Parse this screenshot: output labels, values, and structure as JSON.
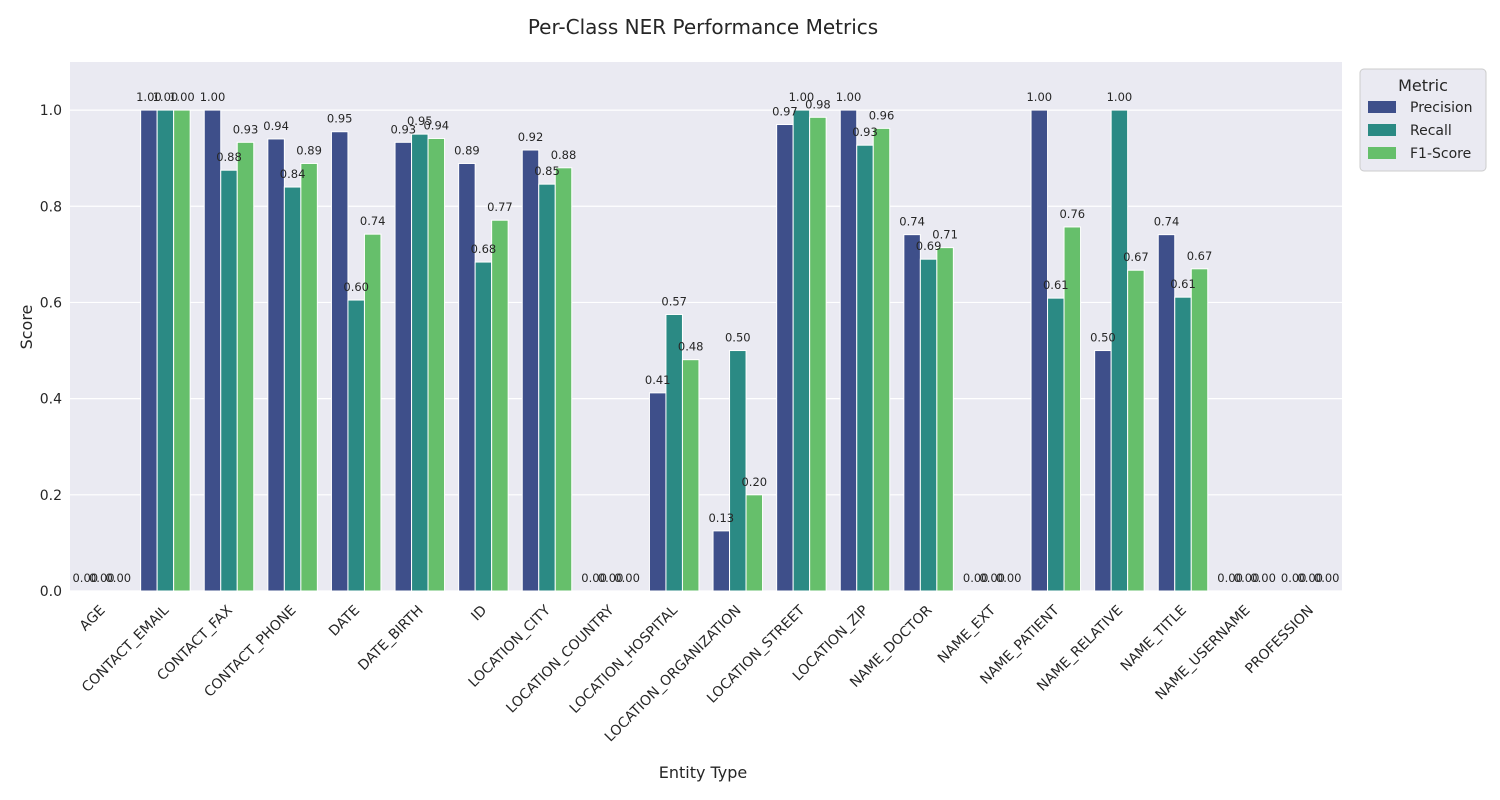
{
  "chart_data": {
    "type": "bar",
    "title": "Per-Class NER Performance Metrics",
    "xlabel": "Entity Type",
    "ylabel": "Score",
    "ylim": [
      0,
      1.1
    ],
    "yticks": [
      "0.0",
      "0.2",
      "0.4",
      "0.6",
      "0.8",
      "1.0"
    ],
    "grid": true,
    "legend": {
      "title": "Metric",
      "placement": "upper-right-outside"
    },
    "categories": [
      "AGE",
      "CONTACT_EMAIL",
      "CONTACT_FAX",
      "CONTACT_PHONE",
      "DATE",
      "DATE_BIRTH",
      "ID",
      "LOCATION_CITY",
      "LOCATION_COUNTRY",
      "LOCATION_HOSPITAL",
      "LOCATION_ORGANIZATION",
      "LOCATION_STREET",
      "LOCATION_ZIP",
      "NAME_DOCTOR",
      "NAME_EXT",
      "NAME_PATIENT",
      "NAME_RELATIVE",
      "NAME_TITLE",
      "NAME_USERNAME",
      "PROFESSION"
    ],
    "series": [
      {
        "name": "Precision",
        "color": "#3e4f8a",
        "values": [
          0.0,
          1.0,
          1.0,
          0.94,
          0.955,
          0.933,
          0.889,
          0.917,
          0.0,
          0.412,
          0.125,
          0.97,
          1.0,
          0.741,
          0.0,
          1.0,
          0.5,
          0.741,
          0.0,
          0.0
        ]
      },
      {
        "name": "Recall",
        "color": "#2b8a84",
        "values": [
          0.0,
          1.0,
          0.875,
          0.84,
          0.605,
          0.95,
          0.684,
          0.846,
          0.0,
          0.575,
          0.5,
          1.0,
          0.927,
          0.69,
          0.0,
          0.609,
          1.0,
          0.611,
          0.0,
          0.0
        ]
      },
      {
        "name": "F1-Score",
        "color": "#66bf6b",
        "values": [
          0.0,
          1.0,
          0.933,
          0.889,
          0.742,
          0.941,
          0.771,
          0.88,
          0.0,
          0.481,
          0.2,
          0.985,
          0.962,
          0.714,
          0.0,
          0.757,
          0.667,
          0.67,
          0.0,
          0.0
        ]
      }
    ]
  }
}
